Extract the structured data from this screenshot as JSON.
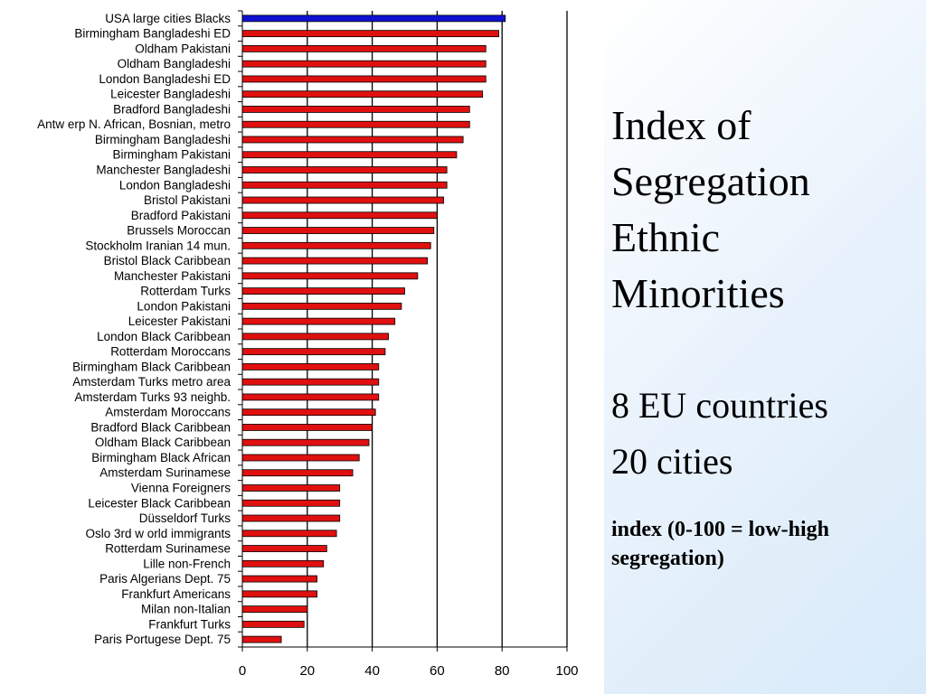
{
  "chart_data": {
    "type": "bar",
    "orientation": "horizontal",
    "xlim": [
      0,
      100
    ],
    "xticks": [
      "0",
      "20",
      "40",
      "60",
      "80",
      "100"
    ],
    "grid": "vertical",
    "highlight_color": "#1010d0",
    "bar_color": "#e01010",
    "categories": [
      "USA large cities Blacks",
      "Birmingham Bangladeshi ED",
      "Oldham Pakistani",
      "Oldham Bangladeshi",
      "London Bangladeshi ED",
      "Leicester Bangladeshi",
      "Bradford Bangladeshi",
      "Antw erp N. African, Bosnian, metro",
      "Birmingham Bangladeshi",
      "Birmingham Pakistani",
      "Manchester Bangladeshi",
      "London Bangladeshi",
      "Bristol Pakistani",
      "Bradford Pakistani",
      "Brussels Moroccan",
      "Stockholm Iranian 14 mun.",
      "Bristol Black Caribbean",
      "Manchester Pakistani",
      "Rotterdam Turks",
      "London Pakistani",
      "Leicester Pakistani",
      "London Black Caribbean",
      "Rotterdam Moroccans",
      "Birmingham Black Caribbean",
      "Amsterdam Turks metro area",
      "Amsterdam Turks 93 neighb.",
      "Amsterdam Moroccans",
      "Bradford Black Caribbean",
      "Oldham Black Caribbean",
      "Birmingham Black African",
      "Amsterdam Surinamese",
      "Vienna Foreigners",
      "Leicester Black Caribbean",
      "Düsseldorf Turks",
      "Oslo 3rd w orld immigrants",
      "Rotterdam Surinamese",
      "Lille non-French",
      "Paris Algerians Dept. 75",
      "Frankfurt Americans",
      "Milan non-Italian",
      "Frankfurt Turks",
      "Paris Portugese Dept. 75"
    ],
    "values": [
      81,
      79,
      75,
      75,
      75,
      74,
      70,
      70,
      68,
      66,
      63,
      63,
      62,
      60,
      59,
      58,
      57,
      54,
      50,
      49,
      47,
      45,
      44,
      42,
      42,
      42,
      41,
      40,
      39,
      36,
      34,
      30,
      30,
      30,
      29,
      26,
      25,
      23,
      23,
      20,
      19,
      12
    ]
  },
  "side": {
    "title_lines": [
      "Index of",
      "Segregation",
      "Ethnic",
      "Minorities"
    ],
    "info_lines": [
      "8 EU countries",
      "20 cities"
    ],
    "note_lines": [
      "index (0-100 = low-high",
      "segregation)"
    ]
  }
}
